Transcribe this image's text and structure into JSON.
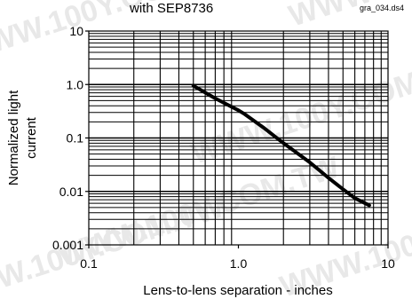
{
  "chart_data": {
    "type": "line",
    "title": "with SEP8736",
    "file_label": "gra_034.ds4",
    "xlabel": "Lens-to-lens separation - inches",
    "ylabel": [
      "Normalized light",
      "current"
    ],
    "x_scale": "log",
    "y_scale": "log",
    "xlim": [
      0.1,
      10
    ],
    "ylim": [
      0.001,
      10
    ],
    "x_ticks": [
      {
        "value": 0.1,
        "label": "0.1"
      },
      {
        "value": 1,
        "label": "1.0"
      },
      {
        "value": 10,
        "label": "10"
      }
    ],
    "y_ticks": [
      {
        "value": 10,
        "label": "10"
      },
      {
        "value": 1,
        "label": "1.0"
      },
      {
        "value": 0.1,
        "label": "0.1"
      },
      {
        "value": 0.01,
        "label": "0.01"
      },
      {
        "value": 0.001,
        "label": "0.001"
      }
    ],
    "grid": true,
    "series": [
      {
        "color": "#000000",
        "x": [
          0.5,
          0.7,
          1.0,
          1.1,
          1.5,
          2.0,
          3.0,
          4.0,
          5.0,
          6.0,
          7.5
        ],
        "y": [
          0.95,
          0.55,
          0.33,
          0.28,
          0.15,
          0.08,
          0.035,
          0.018,
          0.011,
          0.0075,
          0.0055
        ]
      }
    ]
  },
  "watermark": "WWW.100Y.COM.TW"
}
